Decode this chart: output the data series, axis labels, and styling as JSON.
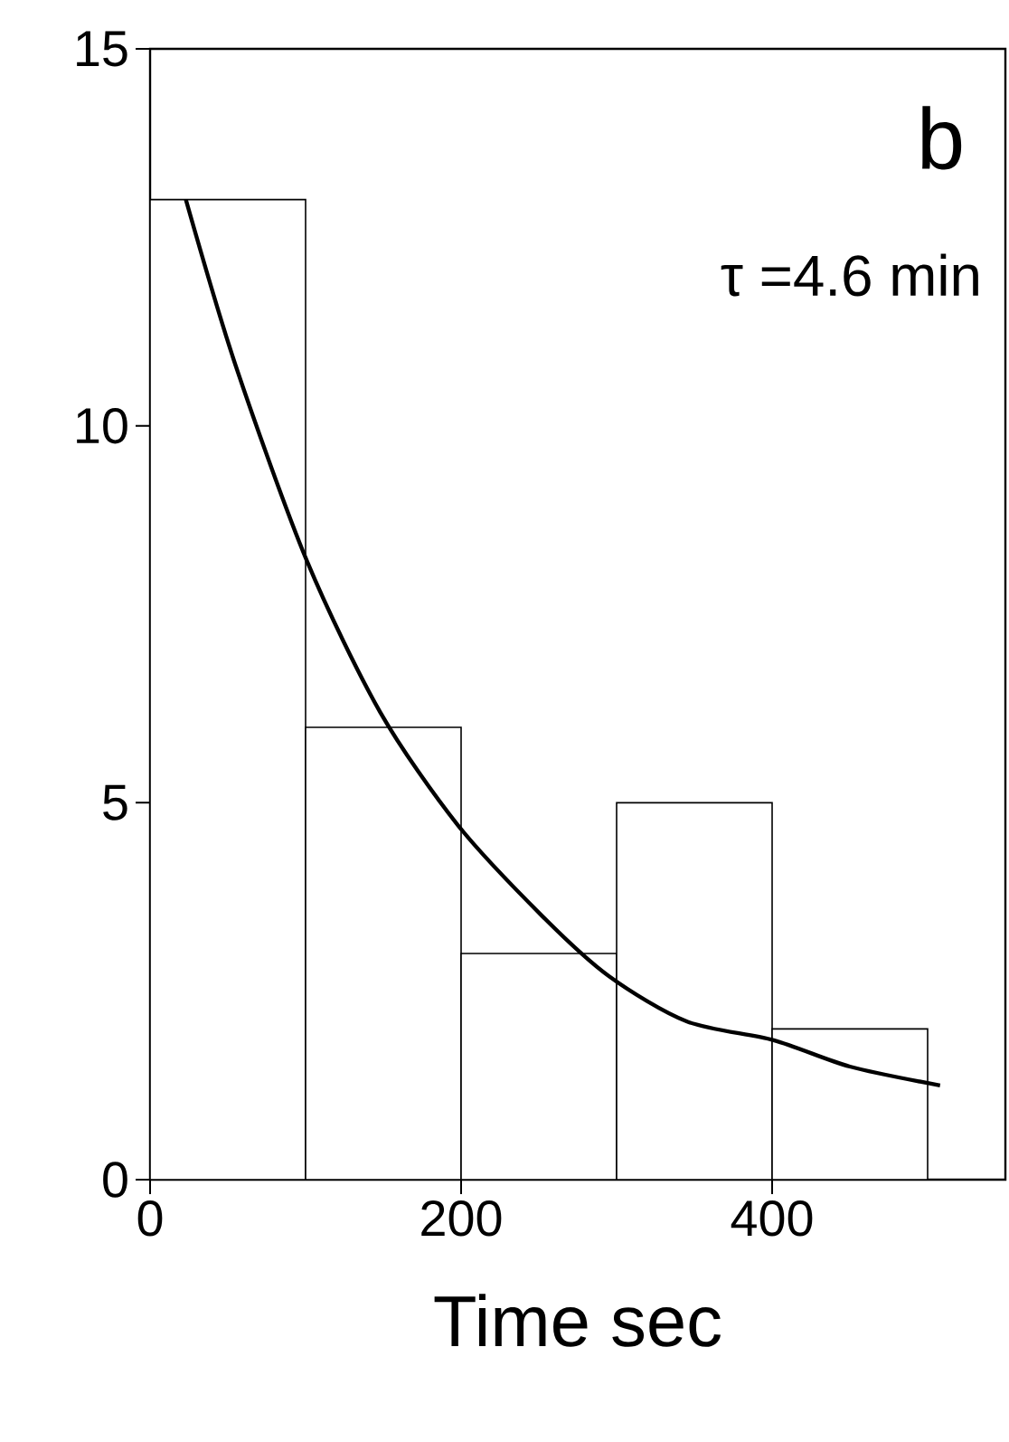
{
  "chart_data": {
    "type": "histogram",
    "xlabel": "Time  sec",
    "bins": [
      0,
      100,
      200,
      300,
      400,
      500
    ],
    "values": [
      13,
      6,
      3,
      5,
      2
    ],
    "color": "#ffffff",
    "series": [
      {
        "type": "line",
        "color": "#000000",
        "x": [
          23,
          55,
          101,
          148,
          198,
          252,
          295,
          345,
          401,
          450,
          508
        ],
        "values": [
          13,
          10.8,
          8.2,
          6.2,
          4.7,
          3.5,
          2.7,
          2.1,
          1.85,
          1.5,
          1.25
        ]
      }
    ],
    "xlim": [
      0,
      550
    ],
    "ylim": [
      0,
      15
    ],
    "xticks": [
      0,
      200,
      400
    ],
    "yticks": [
      0,
      5,
      10,
      15
    ],
    "annotations": [
      "b",
      "τ =4.6 min"
    ],
    "grid": false,
    "marker": "none"
  }
}
